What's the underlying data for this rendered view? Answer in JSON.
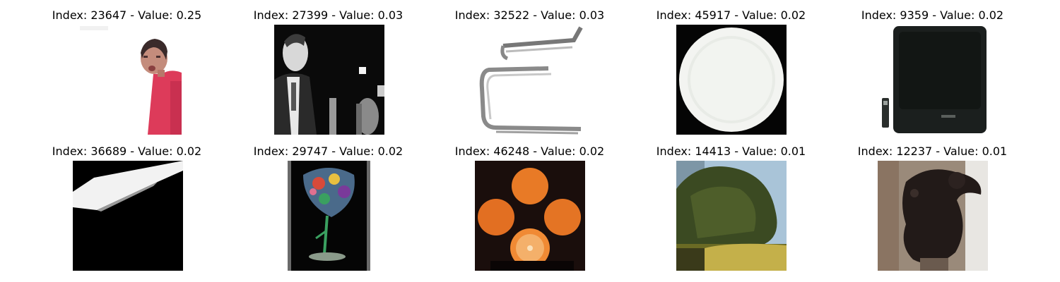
{
  "panels": [
    {
      "title": "Index: 23647 - Value: 0.25",
      "image": "girl-red-shirt-thumbnail"
    },
    {
      "title": "Index: 27399 - Value: 0.03",
      "image": "man-in-suit-bw-thumbnail"
    },
    {
      "title": "Index: 32522 - Value: 0.03",
      "image": "cantilever-chair-thumbnail"
    },
    {
      "title": "Index: 45917 - Value: 0.02",
      "image": "white-plate-thumbnail"
    },
    {
      "title": "Index: 9359 - Value: 0.02",
      "image": "crt-television-thumbnail"
    },
    {
      "title": "Index: 36689 - Value: 0.02",
      "image": "white-streak-on-black-thumbnail"
    },
    {
      "title": "Index: 29747 - Value: 0.02",
      "image": "painted-wine-glass-thumbnail"
    },
    {
      "title": "Index: 46248 - Value: 0.02",
      "image": "four-oranges-thumbnail"
    },
    {
      "title": "Index: 14413 - Value: 0.01",
      "image": "tree-landscape-thumbnail"
    },
    {
      "title": "Index: 12237 - Value: 0.01",
      "image": "black-bear-cub-thumbnail"
    }
  ],
  "colors": {
    "background": "#ffffff",
    "title_text": "#000000"
  }
}
